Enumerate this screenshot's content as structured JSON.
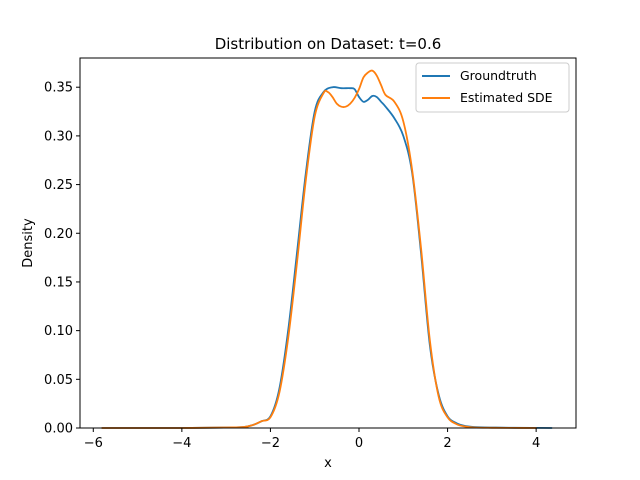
{
  "chart_data": {
    "type": "line",
    "title": "Distribution on Dataset: t=0.6",
    "xlabel": "x",
    "ylabel": "Density",
    "xlim": [
      -6.3,
      4.9
    ],
    "ylim": [
      0,
      0.38
    ],
    "xticks": [
      -6,
      -4,
      -2,
      0,
      2,
      4
    ],
    "yticks": [
      0.0,
      0.05,
      0.1,
      0.15,
      0.2,
      0.25,
      0.3,
      0.35
    ],
    "grid": false,
    "legend_position": "top-right",
    "series": [
      {
        "name": "Groundtruth",
        "color": "#1f77b4",
        "x": [
          -5.8,
          -4.0,
          -3.0,
          -2.6,
          -2.4,
          -2.2,
          -2.0,
          -1.8,
          -1.6,
          -1.4,
          -1.2,
          -1.0,
          -0.8,
          -0.6,
          -0.4,
          -0.2,
          -0.1,
          0.0,
          0.1,
          0.2,
          0.3,
          0.4,
          0.5,
          0.6,
          0.8,
          1.0,
          1.2,
          1.4,
          1.6,
          1.8,
          2.0,
          2.2,
          2.4,
          2.6,
          3.0,
          3.5,
          4.35
        ],
        "y": [
          0.0,
          0.0,
          0.0005,
          0.001,
          0.003,
          0.007,
          0.012,
          0.04,
          0.1,
          0.18,
          0.262,
          0.325,
          0.345,
          0.35,
          0.349,
          0.349,
          0.348,
          0.34,
          0.335,
          0.337,
          0.341,
          0.34,
          0.335,
          0.33,
          0.318,
          0.3,
          0.262,
          0.18,
          0.085,
          0.034,
          0.012,
          0.005,
          0.002,
          0.001,
          0.0005,
          0.0002,
          0.0
        ]
      },
      {
        "name": "Estimated SDE",
        "color": "#ff7f0e",
        "x": [
          -5.8,
          -4.0,
          -3.0,
          -2.6,
          -2.4,
          -2.2,
          -2.0,
          -1.8,
          -1.6,
          -1.4,
          -1.2,
          -1.0,
          -0.8,
          -0.7,
          -0.6,
          -0.5,
          -0.4,
          -0.3,
          -0.2,
          -0.1,
          0.0,
          0.1,
          0.2,
          0.3,
          0.4,
          0.5,
          0.6,
          0.8,
          1.0,
          1.2,
          1.4,
          1.6,
          1.8,
          2.0,
          2.2,
          2.4,
          2.6,
          3.0,
          3.5,
          4.0
        ],
        "y": [
          0.0,
          0.0,
          0.0005,
          0.001,
          0.003,
          0.007,
          0.011,
          0.036,
          0.092,
          0.17,
          0.255,
          0.32,
          0.344,
          0.345,
          0.34,
          0.333,
          0.33,
          0.33,
          0.333,
          0.339,
          0.348,
          0.36,
          0.365,
          0.367,
          0.362,
          0.352,
          0.342,
          0.335,
          0.315,
          0.265,
          0.185,
          0.09,
          0.032,
          0.011,
          0.004,
          0.0015,
          0.0005,
          0.0002,
          0.0001,
          0.0
        ]
      }
    ]
  }
}
